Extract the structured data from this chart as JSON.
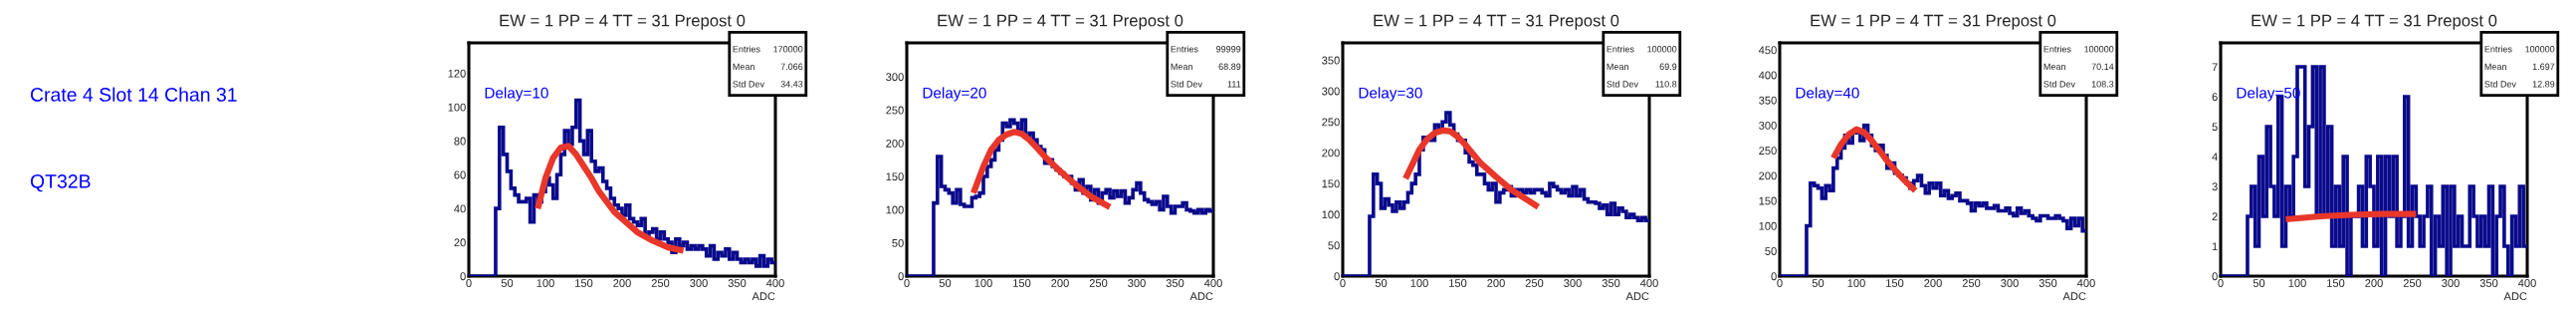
{
  "chart_data": [
    {
      "type": "histogram",
      "title": "EW = 1 PP = 4 TT = 31 Prepost 0",
      "xlabel": "ADC",
      "color": "#0a0a8c",
      "xlim": [
        0,
        400
      ],
      "ylim": [
        0,
        138
      ],
      "xticks": [
        0,
        50,
        100,
        150,
        200,
        250,
        300,
        350,
        400
      ],
      "yticks": [
        0,
        20,
        40,
        60,
        80,
        100,
        120
      ],
      "bins": [
        0,
        5,
        10,
        15,
        20,
        25,
        30,
        35,
        40,
        45,
        50,
        55,
        60,
        65,
        70,
        75,
        80,
        85,
        90,
        95,
        100,
        105,
        110,
        115,
        120,
        125,
        130,
        135,
        140,
        145,
        150,
        155,
        160,
        165,
        170,
        175,
        180,
        185,
        190,
        195,
        200,
        205,
        210,
        215,
        220,
        225,
        230,
        235,
        240,
        245,
        250,
        255,
        260,
        265,
        270,
        275,
        280,
        285,
        290,
        295,
        300,
        305,
        310,
        315,
        320,
        325,
        330,
        335,
        340,
        345,
        350,
        355,
        360,
        365,
        370,
        375,
        380,
        385,
        390,
        395,
        400
      ],
      "values": [
        0,
        0,
        0,
        0,
        0,
        0,
        0,
        40,
        88,
        72,
        62,
        52,
        48,
        44,
        44,
        46,
        32,
        48,
        44,
        50,
        58,
        54,
        46,
        60,
        72,
        86,
        78,
        88,
        104,
        80,
        72,
        86,
        68,
        62,
        64,
        56,
        52,
        46,
        42,
        40,
        36,
        42,
        34,
        32,
        30,
        34,
        24,
        26,
        28,
        22,
        26,
        22,
        20,
        14,
        22,
        18,
        20,
        16,
        18,
        16,
        18,
        16,
        12,
        18,
        10,
        14,
        12,
        16,
        10,
        14,
        10,
        8,
        10,
        8,
        10,
        6,
        12,
        6,
        10,
        8
      ],
      "series": [
        {
          "type": "line",
          "color": "#e8372a",
          "x": [
            90,
            100,
            110,
            120,
            130,
            140,
            150,
            160,
            170,
            180,
            190,
            200,
            220,
            240,
            260,
            280
          ],
          "values": [
            40,
            58,
            70,
            76,
            77,
            72,
            65,
            58,
            50,
            44,
            38,
            34,
            26,
            21,
            17,
            15
          ]
        }
      ],
      "annotations": [
        "Crate 4 Slot 14 Chan 31",
        "QT32B",
        "Delay=10",
        "Entries 170000",
        "Mean 7.066",
        "Std Dev 34.43"
      ]
    },
    {
      "type": "histogram",
      "title": "EW = 1 PP = 4 TT = 31 Prepost 0",
      "xlabel": "ADC",
      "color": "#0a0a8c",
      "xlim": [
        0,
        400
      ],
      "ylim": [
        0,
        351
      ],
      "xticks": [
        0,
        50,
        100,
        150,
        200,
        250,
        300,
        350,
        400
      ],
      "yticks": [
        0,
        50,
        100,
        150,
        200,
        250,
        300
      ],
      "bins": [
        0,
        5,
        10,
        15,
        20,
        25,
        30,
        35,
        40,
        45,
        50,
        55,
        60,
        65,
        70,
        75,
        80,
        85,
        90,
        95,
        100,
        105,
        110,
        115,
        120,
        125,
        130,
        135,
        140,
        145,
        150,
        155,
        160,
        165,
        170,
        175,
        180,
        185,
        190,
        195,
        200,
        205,
        210,
        215,
        220,
        225,
        230,
        235,
        240,
        245,
        250,
        255,
        260,
        265,
        270,
        275,
        280,
        285,
        290,
        295,
        300,
        305,
        310,
        315,
        320,
        325,
        330,
        335,
        340,
        345,
        350,
        355,
        360,
        365,
        370,
        375,
        380,
        385,
        390,
        395,
        400
      ],
      "values": [
        0,
        0,
        0,
        0,
        0,
        0,
        0,
        110,
        180,
        135,
        130,
        125,
        110,
        130,
        108,
        105,
        105,
        118,
        120,
        125,
        150,
        165,
        175,
        190,
        205,
        230,
        225,
        235,
        230,
        220,
        235,
        210,
        215,
        205,
        195,
        190,
        170,
        175,
        165,
        160,
        155,
        150,
        150,
        140,
        130,
        145,
        125,
        135,
        115,
        130,
        110,
        125,
        130,
        118,
        128,
        120,
        128,
        110,
        118,
        130,
        140,
        125,
        115,
        112,
        108,
        112,
        100,
        120,
        105,
        95,
        105,
        105,
        110,
        100,
        98,
        95,
        100,
        95,
        100,
        98
      ],
      "series": [
        {
          "type": "line",
          "color": "#e8372a",
          "x": [
            87,
            100,
            110,
            120,
            130,
            140,
            150,
            160,
            170,
            180,
            200,
            220,
            240,
            265
          ],
          "values": [
            125,
            165,
            190,
            205,
            213,
            217,
            214,
            205,
            193,
            180,
            158,
            138,
            120,
            104
          ]
        }
      ],
      "annotations": [
        "Delay=20",
        "Entries 99999",
        "Mean 68.89",
        "Std Dev 111"
      ]
    },
    {
      "type": "histogram",
      "title": "EW = 1 PP = 4 TT = 31 Prepost 0",
      "xlabel": "ADC",
      "color": "#0a0a8c",
      "xlim": [
        0,
        400
      ],
      "ylim": [
        0,
        378
      ],
      "xticks": [
        0,
        50,
        100,
        150,
        200,
        250,
        300,
        350,
        400
      ],
      "yticks": [
        0,
        50,
        100,
        150,
        200,
        250,
        300,
        350
      ],
      "bins": [
        0,
        5,
        10,
        15,
        20,
        25,
        30,
        35,
        40,
        45,
        50,
        55,
        60,
        65,
        70,
        75,
        80,
        85,
        90,
        95,
        100,
        105,
        110,
        115,
        120,
        125,
        130,
        135,
        140,
        145,
        150,
        155,
        160,
        165,
        170,
        175,
        180,
        185,
        190,
        195,
        200,
        205,
        210,
        215,
        220,
        225,
        230,
        235,
        240,
        245,
        250,
        255,
        260,
        265,
        270,
        275,
        280,
        285,
        290,
        295,
        300,
        305,
        310,
        315,
        320,
        325,
        330,
        335,
        340,
        345,
        350,
        355,
        360,
        365,
        370,
        375,
        380,
        385,
        390,
        395,
        400
      ],
      "values": [
        0,
        0,
        0,
        0,
        0,
        0,
        0,
        97,
        165,
        150,
        110,
        125,
        115,
        105,
        120,
        110,
        120,
        135,
        150,
        165,
        205,
        225,
        225,
        220,
        245,
        235,
        250,
        265,
        245,
        230,
        220,
        220,
        200,
        185,
        180,
        165,
        165,
        150,
        140,
        150,
        120,
        135,
        140,
        145,
        130,
        140,
        140,
        135,
        140,
        135,
        140,
        140,
        135,
        130,
        150,
        145,
        140,
        135,
        140,
        130,
        145,
        130,
        140,
        125,
        120,
        120,
        118,
        110,
        115,
        100,
        118,
        100,
        110,
        105,
        95,
        100,
        95,
        90,
        95,
        90
      ],
      "series": [
        {
          "type": "line",
          "color": "#e8372a",
          "x": [
            82,
            100,
            110,
            120,
            130,
            140,
            150,
            160,
            170,
            180,
            200,
            220,
            240,
            255
          ],
          "values": [
            158,
            205,
            222,
            232,
            236,
            235,
            226,
            213,
            198,
            183,
            161,
            140,
            124,
            112
          ]
        }
      ],
      "annotations": [
        "Delay=30",
        "Entries 100000",
        "Mean 69.9",
        "Std Dev 110.8"
      ]
    },
    {
      "type": "histogram",
      "title": "EW = 1 PP = 4 TT = 31 Prepost 0",
      "xlabel": "ADC",
      "color": "#0a0a8c",
      "xlim": [
        0,
        400
      ],
      "ylim": [
        0,
        464
      ],
      "xticks": [
        0,
        50,
        100,
        150,
        200,
        250,
        300,
        350,
        400
      ],
      "yticks": [
        0,
        50,
        100,
        150,
        200,
        250,
        300,
        350,
        400,
        450
      ],
      "bins": [
        0,
        5,
        10,
        15,
        20,
        25,
        30,
        35,
        40,
        45,
        50,
        55,
        60,
        65,
        70,
        75,
        80,
        85,
        90,
        95,
        100,
        105,
        110,
        115,
        120,
        125,
        130,
        135,
        140,
        145,
        150,
        155,
        160,
        165,
        170,
        175,
        180,
        185,
        190,
        195,
        200,
        205,
        210,
        215,
        220,
        225,
        230,
        235,
        240,
        245,
        250,
        255,
        260,
        265,
        270,
        275,
        280,
        285,
        290,
        295,
        300,
        305,
        310,
        315,
        320,
        325,
        330,
        335,
        340,
        345,
        350,
        355,
        360,
        365,
        370,
        375,
        380,
        385,
        390,
        395,
        400
      ],
      "values": [
        0,
        0,
        0,
        0,
        0,
        0,
        0,
        100,
        185,
        180,
        175,
        155,
        180,
        170,
        215,
        235,
        255,
        280,
        265,
        285,
        290,
        270,
        300,
        280,
        260,
        250,
        260,
        240,
        215,
        225,
        205,
        200,
        195,
        185,
        175,
        190,
        200,
        180,
        165,
        185,
        175,
        185,
        160,
        170,
        155,
        160,
        165,
        150,
        150,
        145,
        130,
        145,
        140,
        145,
        135,
        135,
        140,
        130,
        130,
        135,
        125,
        120,
        135,
        125,
        130,
        120,
        115,
        110,
        120,
        120,
        115,
        115,
        120,
        115,
        110,
        95,
        115,
        100,
        115,
        90
      ],
      "series": [
        {
          "type": "line",
          "color": "#e8372a",
          "x": [
            70,
            80,
            90,
            100,
            110,
            120,
            130,
            140,
            150,
            160,
            170,
            177
          ],
          "values": [
            235,
            262,
            282,
            292,
            286,
            270,
            250,
            230,
            212,
            195,
            180,
            170
          ]
        }
      ],
      "annotations": [
        "Delay=40",
        "Entries 100000",
        "Mean 70.14",
        "Std Dev 108.3"
      ]
    },
    {
      "type": "histogram",
      "title": "EW = 1 PP = 4 TT = 31 Prepost 0",
      "xlabel": "ADC",
      "color": "#0a0a8c",
      "xlim": [
        0,
        400
      ],
      "ylim": [
        0,
        7.8
      ],
      "xticks": [
        0,
        50,
        100,
        150,
        200,
        250,
        300,
        350,
        400
      ],
      "yticks": [
        0,
        1,
        2,
        3,
        4,
        5,
        6,
        7
      ],
      "bins": [
        0,
        5,
        10,
        15,
        20,
        25,
        30,
        35,
        40,
        45,
        50,
        55,
        60,
        65,
        70,
        75,
        80,
        85,
        90,
        95,
        100,
        105,
        110,
        115,
        120,
        125,
        130,
        135,
        140,
        145,
        150,
        155,
        160,
        165,
        170,
        175,
        180,
        185,
        190,
        195,
        200,
        205,
        210,
        215,
        220,
        225,
        230,
        235,
        240,
        245,
        250,
        255,
        260,
        265,
        270,
        275,
        280,
        285,
        290,
        295,
        300,
        305,
        310,
        315,
        320,
        325,
        330,
        335,
        340,
        345,
        350,
        355,
        360,
        365,
        370,
        375,
        380,
        385,
        390,
        395,
        400
      ],
      "values": [
        0,
        0,
        0,
        0,
        0,
        0,
        0,
        2,
        3,
        1,
        4,
        2,
        5,
        3,
        2,
        6,
        1,
        3,
        2,
        4,
        7,
        7,
        3,
        5,
        7,
        2,
        7,
        2,
        5,
        1,
        3,
        1,
        4,
        0,
        2,
        2,
        3,
        1,
        4,
        3,
        1,
        4,
        0,
        4,
        2,
        4,
        1,
        2,
        6,
        1,
        3,
        2,
        1,
        2,
        3,
        0,
        2,
        1,
        3,
        0,
        3,
        1,
        2,
        1,
        1,
        3,
        2,
        1,
        2,
        1,
        3,
        0,
        2,
        3,
        1,
        0,
        2,
        1,
        3,
        1
      ],
      "series": [
        {
          "type": "line",
          "color": "#e8372a",
          "x": [
            85,
            130,
            170,
            210,
            255
          ],
          "values": [
            1.9,
            2.0,
            2.05,
            2.08,
            2.08
          ]
        }
      ],
      "annotations": [
        "Delay=50",
        "Entries 100000",
        "Mean 1.697",
        "Std Dev 12.89"
      ]
    }
  ]
}
